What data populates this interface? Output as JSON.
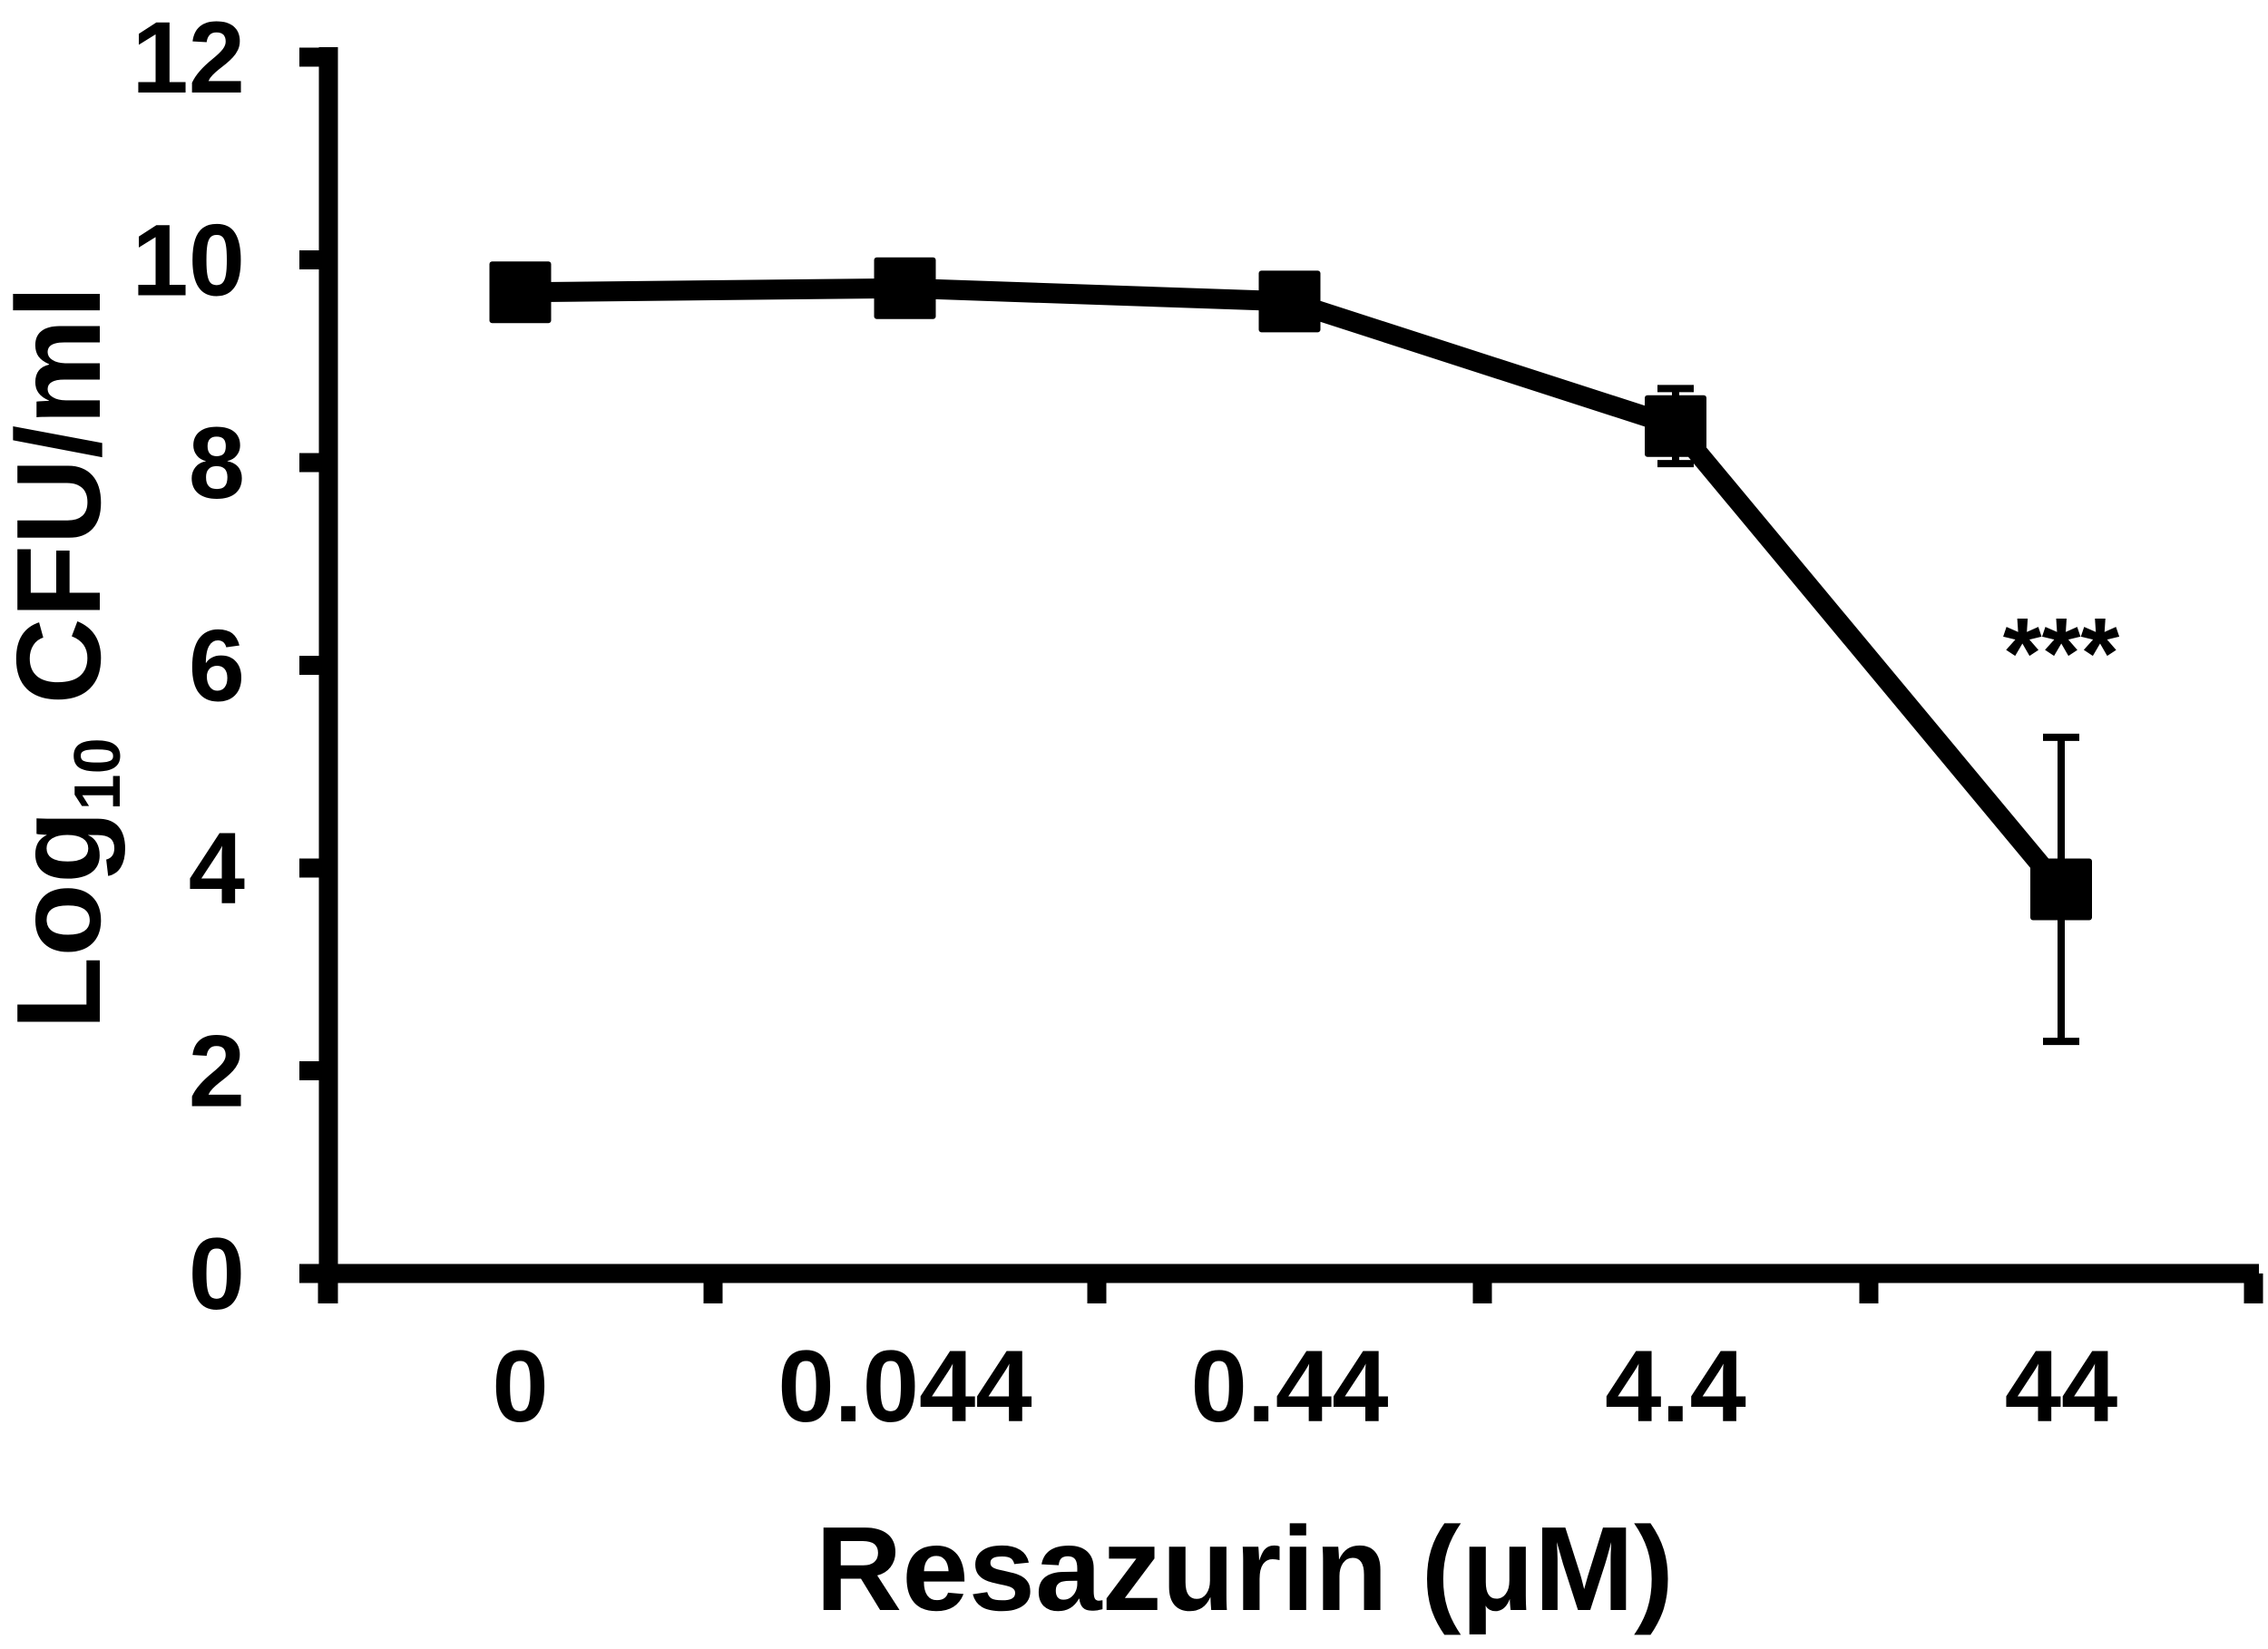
{
  "chart_data": {
    "type": "line",
    "title": "",
    "xlabel": "Resazurin (μM)",
    "ylabel": "Log10 CFU/ml",
    "ylabel_parts": {
      "base": "Log",
      "sub": "10",
      "rest": " CFU/ml"
    },
    "categories": [
      "0",
      "0.044",
      "0.44",
      "4.4",
      "44"
    ],
    "series": [
      {
        "name": "Log10 CFU/ml",
        "values": [
          9.68,
          9.72,
          9.59,
          8.36,
          3.79
        ],
        "error": [
          0.0,
          0.0,
          0.0,
          0.37,
          1.5
        ],
        "marker": "square",
        "color": "#000000"
      }
    ],
    "annotations": [
      {
        "category": "44",
        "text": "***"
      }
    ],
    "ylim": [
      0,
      12
    ],
    "yticks": [
      0,
      2,
      4,
      6,
      8,
      10,
      12
    ],
    "grid": false,
    "legend": "none"
  }
}
